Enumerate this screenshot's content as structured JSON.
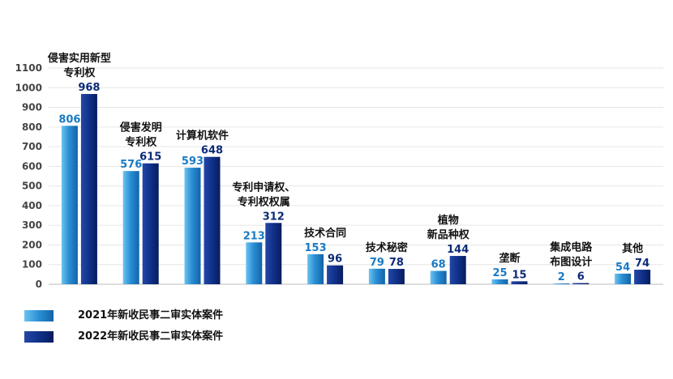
{
  "chart_data": {
    "type": "bar",
    "categories": [
      [
        "侵害实用新型",
        "专利权"
      ],
      [
        "侵害发明",
        "专利权"
      ],
      [
        "计算机软件"
      ],
      [
        "专利申请权、",
        "专利权权属"
      ],
      [
        "技术合同"
      ],
      [
        "技术秘密"
      ],
      [
        "植物",
        "新品种权"
      ],
      [
        "垄断"
      ],
      [
        "集成电路",
        "布图设计"
      ],
      [
        "其他"
      ]
    ],
    "series": [
      {
        "name": "2021年新收民事二审实体案件",
        "values": [
          806,
          576,
          593,
          213,
          153,
          79,
          68,
          25,
          2,
          54
        ],
        "color": "#2a8fd4"
      },
      {
        "name": "2022年新收民事二审实体案件",
        "values": [
          968,
          615,
          648,
          312,
          96,
          78,
          144,
          15,
          6,
          74
        ],
        "color": "#0d2a78"
      }
    ],
    "ylim": [
      0,
      1100
    ],
    "yticks": [
      0,
      100,
      200,
      300,
      400,
      500,
      600,
      700,
      800,
      900,
      1000,
      1100
    ],
    "title": "",
    "xlabel": "",
    "ylabel": ""
  }
}
